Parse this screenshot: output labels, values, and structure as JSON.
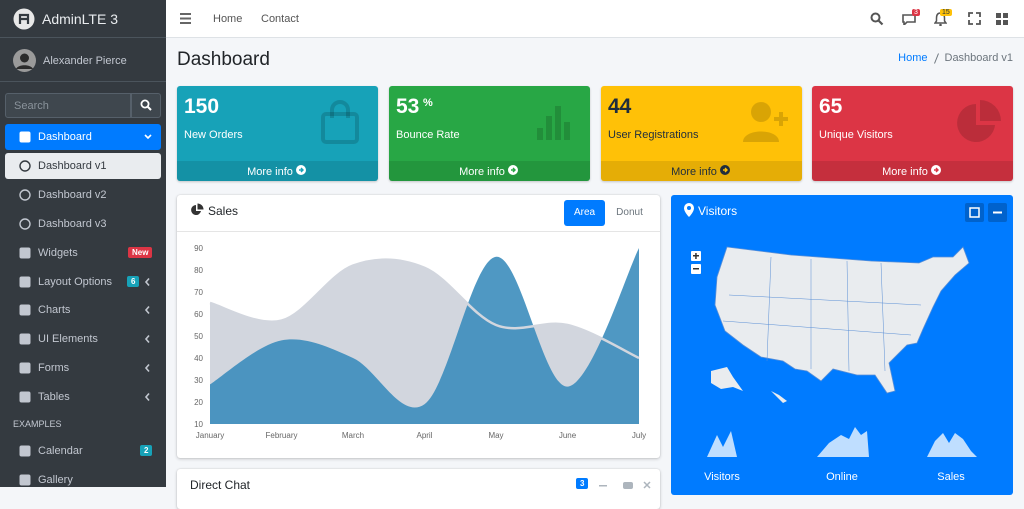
{
  "brand": "AdminLTE 3",
  "user": "Alexander Pierce",
  "search": "Search",
  "sidebar": [
    {
      "label": "Dashboard"
    },
    {
      "label": "Dashboard v1"
    },
    {
      "label": "Dashboard v2"
    },
    {
      "label": "Dashboard v3"
    },
    {
      "label": "Widgets",
      "badge": "New"
    },
    {
      "label": "Layout Options",
      "badge": "6"
    },
    {
      "label": "Charts"
    },
    {
      "label": "UI Elements"
    },
    {
      "label": "Forms"
    },
    {
      "label": "Tables"
    }
  ],
  "sidebar_header": "EXAMPLES",
  "sidebar_examples": [
    {
      "label": "Calendar",
      "badge": "2"
    },
    {
      "label": "Gallery"
    }
  ],
  "topnav": [
    "Home",
    "Contact"
  ],
  "notification_badges": [
    "3",
    "15"
  ],
  "page_title": "Dashboard",
  "breadcrumb": [
    "Home",
    "Dashboard v1"
  ],
  "info_boxes": [
    {
      "value": "150",
      "label": "New Orders",
      "link": "More info"
    },
    {
      "value": "53",
      "sup": "%",
      "label": "Bounce Rate",
      "link": "More info"
    },
    {
      "value": "44",
      "label": "User Registrations",
      "link": "More info"
    },
    {
      "value": "65",
      "label": "Unique Visitors",
      "link": "More info"
    }
  ],
  "sales": {
    "title": "Sales",
    "tabs": [
      "Area",
      "Donut"
    ],
    "chart_data": {
      "type": "area",
      "categories": [
        "January",
        "February",
        "March",
        "April",
        "May",
        "June",
        "July"
      ],
      "series": [
        {
          "color": "#d2d6de",
          "values": [
            65,
            57,
            82,
            81,
            55,
            55,
            40
          ]
        },
        {
          "color": "#3c8dbc",
          "values": [
            28,
            48,
            40,
            19,
            86,
            27,
            90
          ]
        }
      ],
      "ylim": [
        10,
        90
      ],
      "yticks": [
        10,
        20,
        30,
        40,
        50,
        60,
        70,
        80,
        90
      ],
      "grid": false
    }
  },
  "visitors": {
    "title": "Visitors",
    "labels": [
      "Visitors",
      "Online",
      "Sales"
    ]
  },
  "direct_chat": {
    "title": "Direct Chat",
    "badge": "3"
  }
}
